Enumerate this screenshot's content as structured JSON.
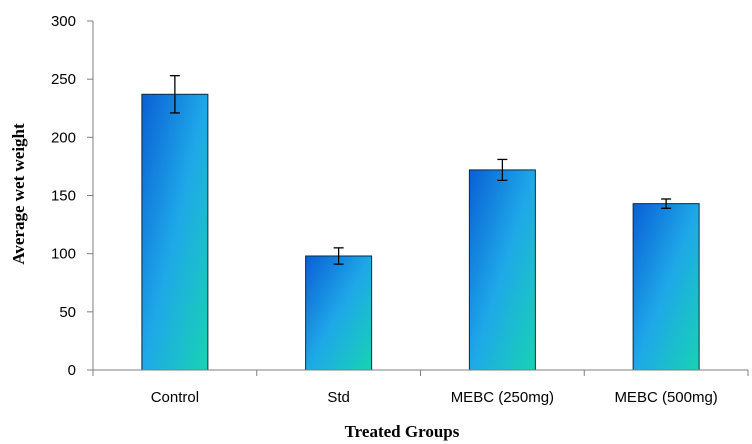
{
  "chart_data": {
    "type": "bar",
    "title": "",
    "xlabel": "Treated Groups",
    "ylabel": "Average wet weight",
    "categories": [
      "Control",
      "Std",
      "MEBC (250mg)",
      "MEBC (500mg)"
    ],
    "values": [
      237,
      98,
      172,
      143
    ],
    "errors": [
      16,
      7,
      9,
      4
    ],
    "ylim": [
      0,
      300
    ],
    "yticks": [
      0,
      50,
      100,
      150,
      200,
      250,
      300
    ],
    "grid": false,
    "legend": "none",
    "colors": {
      "bar_top": "#0a5fd6",
      "bar_mid": "#1ea8e8",
      "bar_bottom": "#17d3b2",
      "bar_edge": "#0a2a44",
      "axis": "#7f7f7f",
      "error_bar": "#000000"
    }
  }
}
